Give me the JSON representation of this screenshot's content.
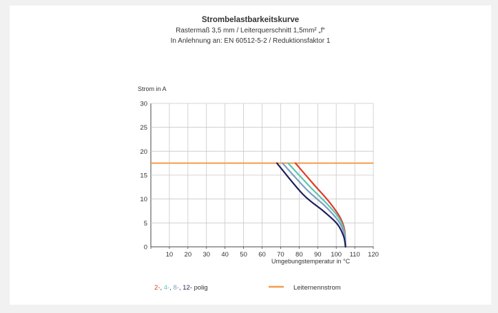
{
  "chart_data": {
    "type": "line",
    "title": "Strombelastbarkeitskurve",
    "subtitle1": "Rastermaß 3,5 mm / Leiterquerschnitt 1,5mm² „f“",
    "subtitle2": "In Anlehnung an: EN 60512-5-2 / Reduktionsfaktor 1",
    "ylabel": "Strom in A",
    "xlabel": "Umgebungstemperatur in °C",
    "xlim": [
      0,
      120
    ],
    "ylim": [
      0,
      30
    ],
    "x_ticks": [
      "10",
      "20",
      "30",
      "40",
      "50",
      "60",
      "70",
      "80",
      "90",
      "100",
      "110",
      "120"
    ],
    "y_ticks": [
      "0",
      "5",
      "10",
      "15",
      "20",
      "25",
      "30"
    ],
    "grid": true,
    "series": [
      {
        "key": "p2",
        "color": "#e03a2a",
        "points": [
          [
            78,
            17.5
          ],
          [
            88,
            13
          ],
          [
            96,
            9.5
          ],
          [
            102,
            6.2
          ],
          [
            104.5,
            3.5
          ],
          [
            105,
            0
          ]
        ]
      },
      {
        "key": "p4",
        "color": "#5cc6b0",
        "points": [
          [
            74,
            17.5
          ],
          [
            86,
            12.5
          ],
          [
            95,
            9
          ],
          [
            101.5,
            6
          ],
          [
            104.5,
            3
          ],
          [
            105,
            0
          ]
        ]
      },
      {
        "key": "p8",
        "color": "#7d9fc2",
        "points": [
          [
            71,
            17.5
          ],
          [
            84,
            12
          ],
          [
            94,
            8.5
          ],
          [
            101,
            5.5
          ],
          [
            104.5,
            2.6
          ],
          [
            105,
            0
          ]
        ]
      },
      {
        "key": "p12",
        "color": "#1e1e5a",
        "points": [
          [
            68,
            17.5
          ],
          [
            82,
            11
          ],
          [
            93,
            7.5
          ],
          [
            100.5,
            4.8
          ],
          [
            104,
            2.2
          ],
          [
            105,
            0
          ]
        ]
      }
    ],
    "hline": {
      "y": 17.5,
      "color": "#f39c4b"
    }
  },
  "legend": {
    "n2": "2-",
    "n4": "4-",
    "n8": "8-",
    "n12": "12-",
    "sep": ",",
    "polig": "polig",
    "rated": "Leiternennstrom",
    "colors": {
      "n2": "#e03a2a",
      "n4": "#5cc6b0",
      "n8": "#7d9fc2",
      "n12": "#1e1e5a",
      "rated": "#f39c4b"
    }
  }
}
